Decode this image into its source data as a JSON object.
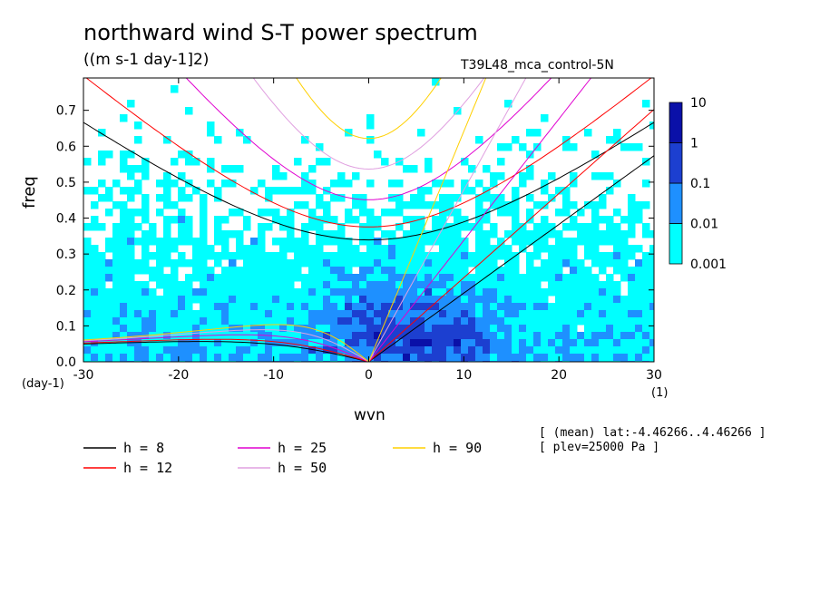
{
  "chart_data": {
    "type": "heatmap",
    "title": "northward wind S-T power spectrum",
    "subtitle": "((m s-1 day-1]2)",
    "run_label": "T39L48_mca_control-5N",
    "xlabel": "wvn",
    "ylabel": "freq",
    "x_unit": "(1)",
    "y_unit": "(day-1)",
    "xlim": [
      -30,
      30
    ],
    "ylim": [
      0,
      0.79
    ],
    "x_ticks": [
      "-30",
      "-20",
      "-10",
      "0",
      "10",
      "20",
      "30"
    ],
    "y_ticks": [
      "0.0",
      "0.1",
      "0.2",
      "0.3",
      "0.4",
      "0.5",
      "0.6",
      "0.7"
    ],
    "colorbar": {
      "levels": [
        "0.001",
        "0.01",
        "0.1",
        "1",
        "10"
      ],
      "colors": [
        "#00ffff",
        "#1e90ff",
        "#1c3fd0",
        "#0a10a8",
        "#5a10a0"
      ]
    },
    "dispersion_curves": [
      {
        "label": "h =  8",
        "h": 8,
        "color": "#000000"
      },
      {
        "label": "h = 12",
        "h": 12,
        "color": "#ff0000"
      },
      {
        "label": "h = 25",
        "h": 25,
        "color": "#e000d0"
      },
      {
        "label": "h = 50",
        "h": 50,
        "color": "#e0a0e0"
      },
      {
        "label": "h = 90",
        "h": 90,
        "color": "#ffd000"
      }
    ],
    "annotations": [
      "[ (mean) lat:-4.46266..4.46266 ]",
      "[ plev=25000 Pa ]"
    ]
  }
}
